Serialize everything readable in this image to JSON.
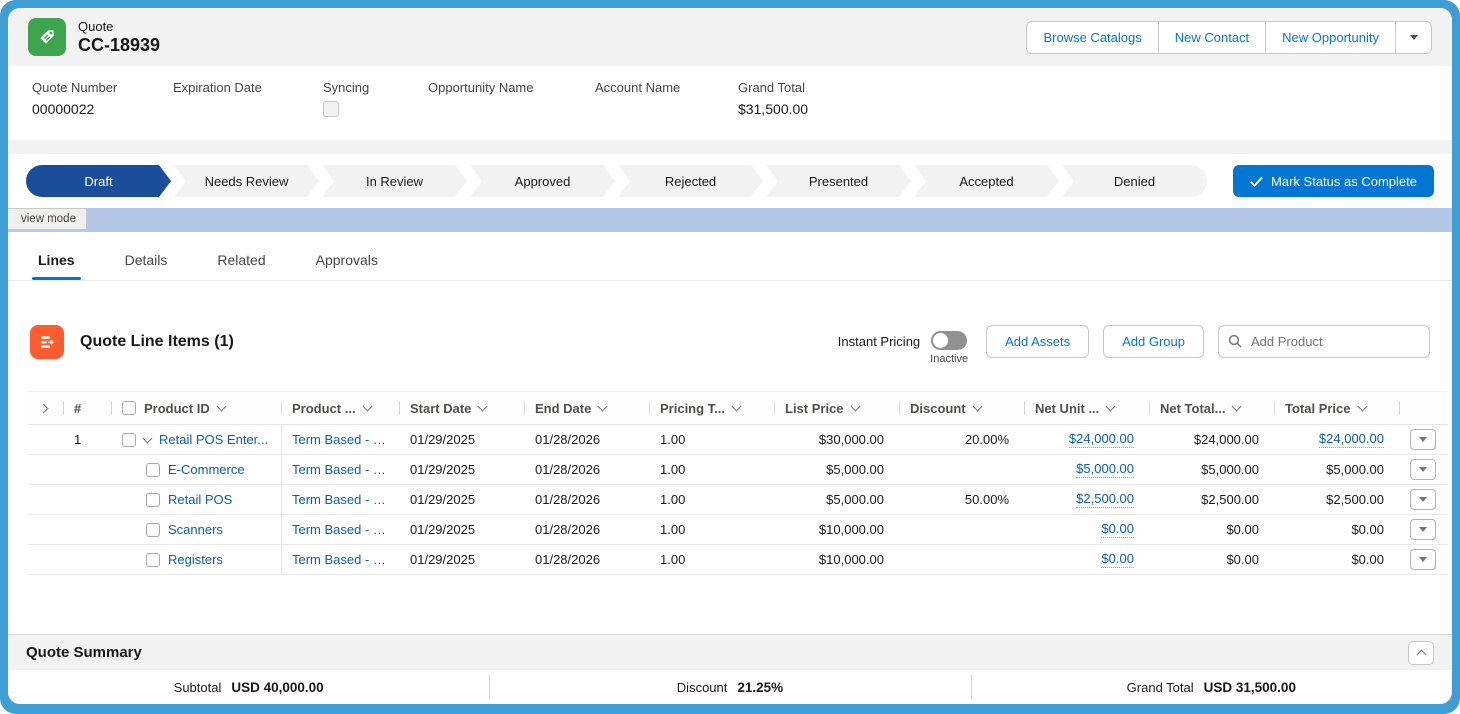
{
  "colors": {
    "frame_blue": "#3d9dd5",
    "band_blue": "#b5c7e6",
    "path_current_navy": "#1b4e9a",
    "brand_button_blue": "#0176d3",
    "link_blue": "#0b5cab",
    "quote_icon_green": "#3ea44e",
    "line_items_icon_orange": "#ff5d2d"
  },
  "header": {
    "object_label": "Quote",
    "record_name": "CC-18939",
    "actions": [
      "Browse Catalogs",
      "New Contact",
      "New Opportunity"
    ]
  },
  "fields": [
    {
      "label": "Quote Number",
      "value": "00000022",
      "type": "text"
    },
    {
      "label": "Expiration Date",
      "value": "",
      "type": "text"
    },
    {
      "label": "Syncing",
      "value": "",
      "type": "checkbox"
    },
    {
      "label": "Opportunity Name",
      "value": "",
      "type": "text"
    },
    {
      "label": "Account Name",
      "value": "",
      "type": "text"
    },
    {
      "label": "Grand Total",
      "value": "$31,500.00",
      "type": "text"
    }
  ],
  "path": {
    "stages": [
      "Draft",
      "Needs Review",
      "In Review",
      "Approved",
      "Rejected",
      "Presented",
      "Accepted",
      "Denied"
    ],
    "current": "Draft",
    "button_label": "Mark Status as Complete"
  },
  "tooltip": {
    "label": "view mode"
  },
  "tabs": {
    "items": [
      "Lines",
      "Details",
      "Related",
      "Approvals"
    ],
    "active": "Lines"
  },
  "line_items": {
    "title": "Quote Line Items (1)",
    "instant_pricing_label": "Instant Pricing",
    "instant_pricing_state": "Inactive",
    "add_assets_label": "Add Assets",
    "add_group_label": "Add Group",
    "search_placeholder": "Add Product",
    "columns": [
      "#",
      "Product ID",
      "Product ...",
      "Start Date",
      "End Date",
      "Pricing T...",
      "List Price",
      "Discount",
      "Net Unit ...",
      "Net Total...",
      "Total Price"
    ],
    "rows": [
      {
        "num": "1",
        "expand": true,
        "child": false,
        "product": "Retail POS Enter...",
        "term": "Term Based - Y...",
        "start": "01/29/2025",
        "end": "01/28/2026",
        "qty": "1.00",
        "list": "$30,000.00",
        "discount": "20.00%",
        "net_unit": "$24,000.00",
        "net_total": "$24,000.00",
        "total": "$24,000.00",
        "total_is_link": true
      },
      {
        "num": "",
        "expand": false,
        "child": true,
        "product": "E-Commerce",
        "term": "Term Based - Y...",
        "start": "01/29/2025",
        "end": "01/28/2026",
        "qty": "1.00",
        "list": "$5,000.00",
        "discount": "",
        "net_unit": "$5,000.00",
        "net_total": "$5,000.00",
        "total": "$5,000.00",
        "total_is_link": false
      },
      {
        "num": "",
        "expand": false,
        "child": true,
        "product": "Retail POS",
        "term": "Term Based - Y...",
        "start": "01/29/2025",
        "end": "01/28/2026",
        "qty": "1.00",
        "list": "$5,000.00",
        "discount": "50.00%",
        "net_unit": "$2,500.00",
        "net_total": "$2,500.00",
        "total": "$2,500.00",
        "total_is_link": false
      },
      {
        "num": "",
        "expand": false,
        "child": true,
        "product": "Scanners",
        "term": "Term Based - Y...",
        "start": "01/29/2025",
        "end": "01/28/2026",
        "qty": "1.00",
        "list": "$10,000.00",
        "discount": "",
        "net_unit": "$0.00",
        "net_total": "$0.00",
        "total": "$0.00",
        "total_is_link": false
      },
      {
        "num": "",
        "expand": false,
        "child": true,
        "product": "Registers",
        "term": "Term Based - Y...",
        "start": "01/29/2025",
        "end": "01/28/2026",
        "qty": "1.00",
        "list": "$10,000.00",
        "discount": "",
        "net_unit": "$0.00",
        "net_total": "$0.00",
        "total": "$0.00",
        "total_is_link": false
      }
    ]
  },
  "summary": {
    "title": "Quote Summary",
    "items": [
      {
        "label": "Subtotal",
        "value": "USD 40,000.00"
      },
      {
        "label": "Discount",
        "value": "21.25%"
      },
      {
        "label": "Grand Total",
        "value": "USD 31,500.00"
      }
    ]
  }
}
